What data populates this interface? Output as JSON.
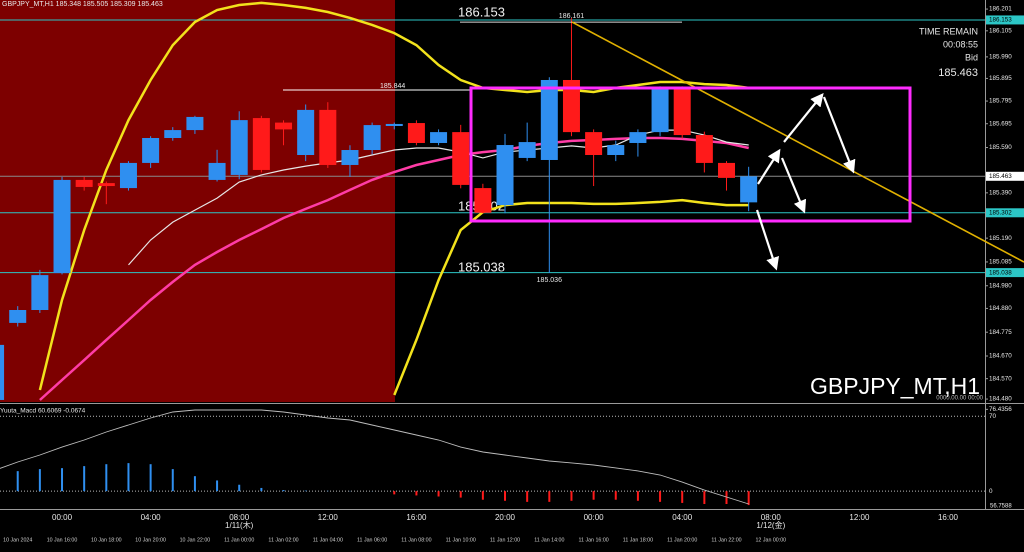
{
  "chart_data": [
    {
      "type": "candlestick",
      "title": "GBPJPY_MT,H1 185.348 185.505 185.309 185.463",
      "watermark": "GBPJPY_MT,H1",
      "stamp": "0000.00.00 00:00",
      "info": {
        "time_remain_label": "TIME REMAIN",
        "time_remain": "00:08:55",
        "bid_label": "Bid",
        "bid": 185.463
      },
      "x": [
        0,
        1,
        2,
        3,
        4,
        5,
        6,
        7,
        8,
        9,
        10,
        11,
        12,
        13,
        14,
        15,
        16,
        17,
        18,
        19,
        20,
        21,
        22,
        23,
        24,
        25,
        26,
        27,
        28,
        29,
        30,
        31,
        32,
        33,
        34
      ],
      "open": [
        184.476,
        184.816,
        184.873,
        185.036,
        185.447,
        185.433,
        185.411,
        185.522,
        185.632,
        185.667,
        185.447,
        185.469,
        185.72,
        185.7,
        185.557,
        185.756,
        185.513,
        185.579,
        185.685,
        185.698,
        185.61,
        185.658,
        185.411,
        185.336,
        185.544,
        185.535,
        185.888,
        185.658,
        185.557,
        185.61,
        185.658,
        185.853,
        185.645,
        185.522,
        185.348
      ],
      "high": [
        184.75,
        184.89,
        185.05,
        185.46,
        185.46,
        185.44,
        185.53,
        185.64,
        185.68,
        185.73,
        185.58,
        185.75,
        185.73,
        185.71,
        185.78,
        185.79,
        185.6,
        185.7,
        185.7,
        185.71,
        185.67,
        185.69,
        185.43,
        185.65,
        185.7,
        185.9,
        186.161,
        185.67,
        185.62,
        185.67,
        185.86,
        185.86,
        185.66,
        185.53,
        185.505
      ],
      "low": [
        184.47,
        184.8,
        184.86,
        185.03,
        185.4,
        185.34,
        185.4,
        185.5,
        185.62,
        185.65,
        185.44,
        185.45,
        185.48,
        185.6,
        185.53,
        185.5,
        185.46,
        185.56,
        185.67,
        185.6,
        185.6,
        185.41,
        185.3,
        185.3,
        185.53,
        185.036,
        185.64,
        185.42,
        185.53,
        185.55,
        185.64,
        185.63,
        185.48,
        185.4,
        185.309
      ],
      "close": [
        184.719,
        184.873,
        185.027,
        185.447,
        185.416,
        185.42,
        185.522,
        185.632,
        185.667,
        185.725,
        185.522,
        185.711,
        185.491,
        185.67,
        185.756,
        185.513,
        185.579,
        185.689,
        185.694,
        185.61,
        185.658,
        185.425,
        185.302,
        185.601,
        185.614,
        185.888,
        185.658,
        185.557,
        185.601,
        185.658,
        185.853,
        185.645,
        185.522,
        185.456,
        185.463
      ],
      "up_color": "#2f8ff0",
      "down_color": "#ff1a1a",
      "overlays": [
        {
          "color": "#f2e21c",
          "width": 2.5,
          "values": [
            null,
            null,
            184.52,
            184.917,
            185.226,
            185.491,
            185.711,
            185.888,
            186.042,
            186.144,
            186.197,
            186.219,
            186.228,
            186.219,
            186.206,
            186.188,
            186.162,
            186.131,
            186.095,
            186.042,
            185.954,
            185.888,
            185.853,
            185.844,
            185.835,
            185.844,
            185.844,
            185.835,
            185.853,
            185.866,
            185.879,
            185.879,
            185.87,
            185.866,
            185.853
          ]
        },
        {
          "color": "#f2e21c",
          "width": 2.5,
          "values": [
            null,
            null,
            null,
            null,
            null,
            null,
            null,
            null,
            null,
            null,
            null,
            null,
            null,
            null,
            null,
            null,
            null,
            null,
            184.498,
            184.741,
            185.005,
            185.226,
            185.305,
            185.336,
            185.345,
            185.345,
            185.345,
            185.341,
            185.341,
            185.345,
            185.35,
            185.358,
            185.345,
            185.336,
            185.336
          ]
        },
        {
          "color": "#ff3ca6",
          "width": 2.5,
          "values": [
            null,
            null,
            184.476,
            184.564,
            184.652,
            184.741,
            184.829,
            184.917,
            184.997,
            185.072,
            185.129,
            185.182,
            185.23,
            185.279,
            185.319,
            185.358,
            185.403,
            185.447,
            185.482,
            185.513,
            185.535,
            185.557,
            185.57,
            185.579,
            185.597,
            185.61,
            185.619,
            185.623,
            185.628,
            185.632,
            185.632,
            185.628,
            185.619,
            185.61,
            185.588
          ]
        },
        {
          "color": "#e6e6e6",
          "width": 1.2,
          "values": [
            null,
            null,
            null,
            null,
            null,
            null,
            185.072,
            185.182,
            185.261,
            185.314,
            185.367,
            185.438,
            185.469,
            185.491,
            185.508,
            185.522,
            185.535,
            185.557,
            185.579,
            185.588,
            185.588,
            185.57,
            185.544,
            185.57,
            185.579,
            185.588,
            185.597,
            185.588,
            185.601,
            185.645,
            185.667,
            185.667,
            185.645,
            185.614,
            185.601
          ]
        }
      ],
      "levels": [
        {
          "value": 186.153,
          "color": "#2cc6c6",
          "boxed": true
        },
        {
          "value": 185.844,
          "color": "#ffffff",
          "boxed": false
        },
        {
          "value": 185.463,
          "color": "#8a8a8a",
          "boxed": true
        },
        {
          "value": 185.302,
          "color": "#2cc6c6",
          "boxed": true
        },
        {
          "value": 185.038,
          "color": "#2cc6c6",
          "boxed": true
        }
      ],
      "xlim": [
        0.2,
        44.67
      ],
      "ylim": [
        184.467,
        186.241
      ],
      "yticks": [
        186.201,
        186.105,
        {
          "value": 185.99,
          "label": "185.990"
        },
        185.895,
        185.795,
        185.695,
        {
          "value": 185.59,
          "label": "185.590"
        },
        {
          "value": 185.39,
          "label": "185.390"
        },
        {
          "value": 185.19,
          "label": "185.190"
        },
        185.085,
        {
          "value": 184.98,
          "label": "184.980"
        },
        {
          "value": 184.88,
          "label": "184.880"
        },
        184.775,
        {
          "value": 184.67,
          "label": "184.670"
        },
        {
          "value": 184.57,
          "label": "184.570"
        },
        {
          "value": 184.48,
          "label": "184.480"
        }
      ],
      "xticks": [
        {
          "value": 3,
          "label": "00:00"
        },
        {
          "value": 7,
          "label": "04:00"
        },
        {
          "value": 11,
          "label": "08:00"
        },
        {
          "value": 15,
          "label": "12:00"
        },
        {
          "value": 19,
          "label": "16:00"
        },
        {
          "value": 23,
          "label": "20:00"
        },
        {
          "value": 27,
          "label": "00:00"
        },
        {
          "value": 31,
          "label": "04:00"
        },
        {
          "value": 35,
          "label": "08:00"
        },
        {
          "value": 39,
          "label": "12:00"
        },
        {
          "value": 43,
          "label": "16:00"
        }
      ],
      "date_ticks": [
        {
          "value": 11,
          "label": "1/11(木)"
        },
        {
          "value": 35,
          "label": "1/12(金)"
        }
      ],
      "x2ticks": [
        {
          "value": 1,
          "label": "10 Jan 2024"
        },
        {
          "value": 3,
          "label": "10 Jan 16:00"
        },
        {
          "value": 5,
          "label": "10 Jan 18:00"
        },
        {
          "value": 7,
          "label": "10 Jan 20:00"
        },
        {
          "value": 9,
          "label": "10 Jan 22:00"
        },
        {
          "value": 11,
          "label": "11 Jan 00:00"
        },
        {
          "value": 13,
          "label": "11 Jan 02:00"
        },
        {
          "value": 15,
          "label": "11 Jan 04:00"
        },
        {
          "value": 17,
          "label": "11 Jan 06:00"
        },
        {
          "value": 19,
          "label": "11 Jan 08:00"
        },
        {
          "value": 21,
          "label": "11 Jan 10:00"
        },
        {
          "value": 23,
          "label": "11 Jan 12:00"
        },
        {
          "value": 25,
          "label": "11 Jan 14:00"
        },
        {
          "value": 27,
          "label": "11 Jan 16:00"
        },
        {
          "value": 29,
          "label": "11 Jan 18:00"
        },
        {
          "value": 31,
          "label": "11 Jan 20:00"
        },
        {
          "value": 33,
          "label": "11 Jan 22:00"
        },
        {
          "value": 35,
          "label": "12 Jan 00:00"
        }
      ]
    },
    {
      "type": "macd",
      "title": "Yuuta_Macd 60.6069 -0.0674",
      "x": [
        0,
        1,
        2,
        3,
        4,
        5,
        6,
        7,
        8,
        9,
        10,
        11,
        12,
        13,
        14,
        15,
        16,
        17,
        18,
        19,
        20,
        21,
        22,
        23,
        24,
        25,
        26,
        27,
        28,
        29,
        30,
        31,
        32,
        33,
        34
      ],
      "values": [
        15,
        18.7,
        20.6,
        21.5,
        23.4,
        25.2,
        26.2,
        25.2,
        20.6,
        14,
        10,
        6,
        3,
        1,
        0.5,
        0.3,
        0.2,
        0.1,
        -3,
        -4,
        -5,
        -6,
        -8,
        -9,
        -10,
        -10,
        -9,
        -8,
        -8,
        -9,
        -10,
        -11,
        -12,
        -12,
        -13
      ],
      "up_color": "#2f8ff0",
      "down_color": "#ff1a1a",
      "line": {
        "color": "#bdbdbd",
        "values": [
          19.8,
          27.2,
          33.8,
          41.2,
          47.8,
          55.3,
          61.8,
          68.4,
          74,
          75.8,
          75.8,
          75.8,
          75.8,
          74,
          71.2,
          68.4,
          66.5,
          61.8,
          57.1,
          52.5,
          47.8,
          41.2,
          36.6,
          33.8,
          31,
          28.2,
          26.4,
          24.4,
          21.7,
          18.9,
          15.1,
          8.5,
          1,
          -5.5,
          -12
        ]
      },
      "xlim": [
        0.2,
        44.67
      ],
      "ylim": [
        -14.8,
        80.5
      ],
      "yticks": [
        76.4356,
        70,
        0
      ],
      "bottom_label": "56.7588"
    }
  ]
}
